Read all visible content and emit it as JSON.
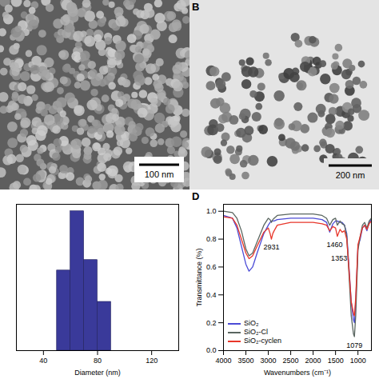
{
  "images": [
    {
      "scale_bar": "100 nm"
    },
    {
      "panel_label": "B",
      "scale_bar": "200 nm"
    }
  ],
  "chart_data": [
    {
      "type": "histogram",
      "x_label": "Diameter (nm)",
      "bins": [
        50,
        60,
        70,
        80,
        90
      ],
      "values": [
        23,
        40,
        26,
        14
      ],
      "color": "#3a3a9a",
      "xlim": [
        20,
        140
      ],
      "xticks": [
        40,
        80,
        120
      ],
      "ylim": [
        0,
        42
      ],
      "tick_labels": "x"
    },
    {
      "type": "line",
      "panel_label": "D",
      "x_label": "Wavenumbers (cm⁻¹)",
      "y_label": "Transmittance (%)",
      "x": [
        4000,
        3800,
        3700,
        3600,
        3500,
        3430,
        3350,
        3250,
        3100,
        3000,
        2960,
        2931,
        2900,
        2870,
        2800,
        2500,
        2000,
        1800,
        1700,
        1630,
        1560,
        1500,
        1460,
        1400,
        1353,
        1300,
        1250,
        1200,
        1150,
        1100,
        1079,
        1050,
        1000,
        950,
        900,
        850,
        800,
        750,
        700
      ],
      "series": [
        {
          "name": "SiO₂",
          "color": "#4b4bd6",
          "values": [
            0.97,
            0.95,
            0.88,
            0.75,
            0.62,
            0.57,
            0.6,
            0.7,
            0.84,
            0.9,
            0.92,
            0.93,
            0.93,
            0.93,
            0.94,
            0.95,
            0.95,
            0.94,
            0.92,
            0.85,
            0.91,
            0.93,
            0.93,
            0.92,
            0.92,
            0.9,
            0.84,
            0.6,
            0.35,
            0.22,
            0.2,
            0.35,
            0.75,
            0.8,
            0.88,
            0.9,
            0.86,
            0.92,
            0.94
          ]
        },
        {
          "name": "SiO₂-Cl",
          "color": "#5a6660",
          "values": [
            1.0,
            0.99,
            0.95,
            0.86,
            0.73,
            0.68,
            0.7,
            0.78,
            0.9,
            0.95,
            0.94,
            0.92,
            0.94,
            0.95,
            0.97,
            0.98,
            0.98,
            0.97,
            0.95,
            0.9,
            0.94,
            0.95,
            0.9,
            0.93,
            0.91,
            0.9,
            0.82,
            0.55,
            0.25,
            0.12,
            0.1,
            0.25,
            0.72,
            0.82,
            0.9,
            0.92,
            0.88,
            0.93,
            0.95
          ]
        },
        {
          "name": "SiO₂-cyclen",
          "color": "#e8362a",
          "values": [
            0.96,
            0.95,
            0.9,
            0.8,
            0.7,
            0.66,
            0.68,
            0.75,
            0.85,
            0.88,
            0.84,
            0.8,
            0.84,
            0.86,
            0.9,
            0.92,
            0.92,
            0.91,
            0.9,
            0.86,
            0.89,
            0.88,
            0.82,
            0.87,
            0.85,
            0.86,
            0.8,
            0.58,
            0.35,
            0.27,
            0.25,
            0.38,
            0.76,
            0.82,
            0.88,
            0.9,
            0.87,
            0.91,
            0.93
          ]
        }
      ],
      "xlim": [
        4000,
        700
      ],
      "xticks": [
        4000,
        3500,
        3000,
        2500,
        2000,
        1500,
        1000
      ],
      "ylim": [
        0,
        1.05
      ],
      "yticks": [
        {
          "value": 0,
          "label": "0.0"
        },
        {
          "value": 0.2,
          "label": "0.2"
        },
        {
          "value": 0.4,
          "label": "0.4"
        },
        {
          "value": 0.6,
          "label": "0.6"
        },
        {
          "value": 0.8,
          "label": "0.8"
        },
        {
          "value": 1,
          "label": "1.0"
        }
      ],
      "legend": "bottom-left",
      "annotations": [
        {
          "text": "2931",
          "x": 2931,
          "y": 0.74
        },
        {
          "text": "1460",
          "x": 1520,
          "y": 0.76
        },
        {
          "text": "1353",
          "x": 1420,
          "y": 0.66
        },
        {
          "text": "1079",
          "x": 1079,
          "y": 0.035
        }
      ]
    }
  ]
}
